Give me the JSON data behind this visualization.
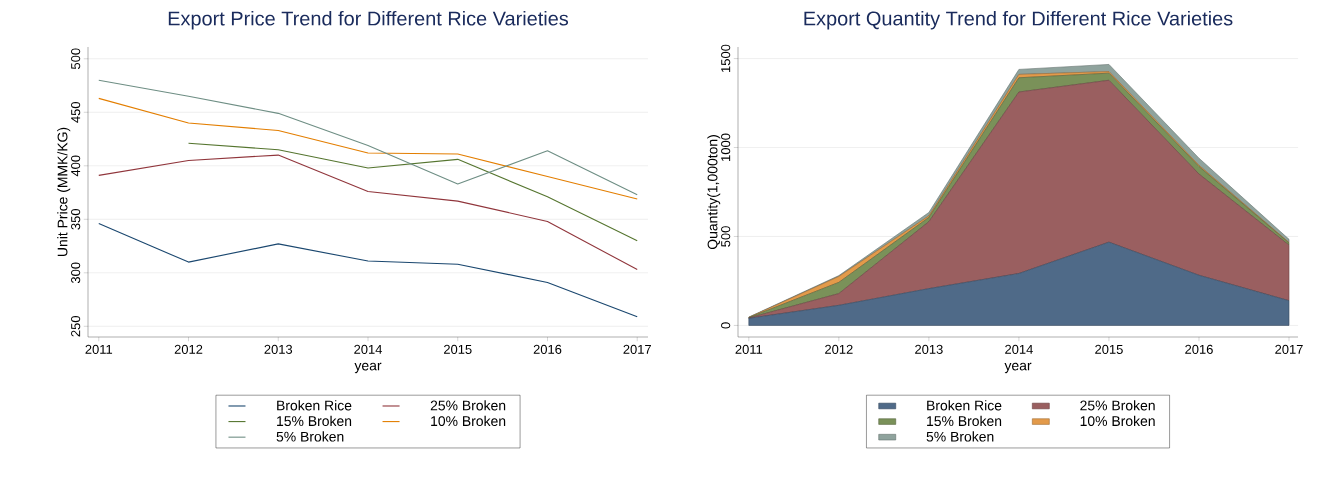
{
  "chart_data": [
    {
      "type": "line",
      "title": "Export Price Trend for Different Rice Varieties",
      "xlabel": "year",
      "ylabel": "Unit Price (MMK/KG)",
      "x": [
        2011,
        2012,
        2013,
        2014,
        2015,
        2016,
        2017
      ],
      "series": [
        {
          "name": "Broken Rice",
          "color": "#1a476f",
          "values": [
            346,
            310,
            327,
            311,
            308,
            291,
            259
          ]
        },
        {
          "name": "25% Broken",
          "color": "#90353b",
          "values": [
            391,
            405,
            410,
            376,
            367,
            348,
            303
          ]
        },
        {
          "name": "15% Broken",
          "color": "#55752f",
          "values": [
            null,
            421,
            415,
            398,
            406,
            371,
            330
          ]
        },
        {
          "name": "10% Broken",
          "color": "#e37e00",
          "values": [
            463,
            440,
            433,
            412,
            411,
            390,
            369
          ]
        },
        {
          "name": "5% Broken",
          "color": "#6e8e84",
          "values": [
            480,
            465,
            449,
            419,
            383,
            414,
            373
          ]
        }
      ],
      "xlim": [
        2010.88,
        2017.12
      ],
      "xticks": [
        2011,
        2012,
        2013,
        2014,
        2015,
        2016,
        2017
      ],
      "ylim": [
        240,
        511
      ],
      "yticks": [
        250,
        300,
        350,
        400,
        450,
        500
      ],
      "grid": "y",
      "legend": "bottom"
    },
    {
      "type": "area",
      "stacked": true,
      "title": "Export Quantity Trend for Different Rice Varieties",
      "xlabel": "year",
      "ylabel": "Quantity(1,000ton)",
      "x": [
        2011,
        2012,
        2013,
        2014,
        2015,
        2016,
        2017
      ],
      "series": [
        {
          "name": "Broken Rice",
          "color": "#4f6a88",
          "values": [
            40,
            113,
            207,
            292,
            468,
            282,
            139
          ]
        },
        {
          "name": "25% Broken",
          "color": "#9a5f60",
          "values": [
            2,
            66,
            376,
            1020,
            910,
            569,
            312
          ]
        },
        {
          "name": "15% Broken",
          "color": "#7a9159",
          "values": [
            2,
            63,
            24,
            80,
            40,
            42,
            12
          ]
        },
        {
          "name": "10% Broken",
          "color": "#e39a4a",
          "values": [
            1,
            33,
            9,
            19,
            9,
            7,
            3
          ]
        },
        {
          "name": "5% Broken",
          "color": "#8fa39d",
          "values": [
            2,
            5,
            19,
            28,
            40,
            40,
            18
          ]
        }
      ],
      "xlim": [
        2010.88,
        2017.1
      ],
      "xticks": [
        2011,
        2012,
        2013,
        2014,
        2015,
        2016,
        2017
      ],
      "ylim": [
        -65,
        1565
      ],
      "yticks": [
        0,
        500,
        1000,
        1500
      ],
      "grid": "y",
      "legend": "bottom"
    }
  ]
}
